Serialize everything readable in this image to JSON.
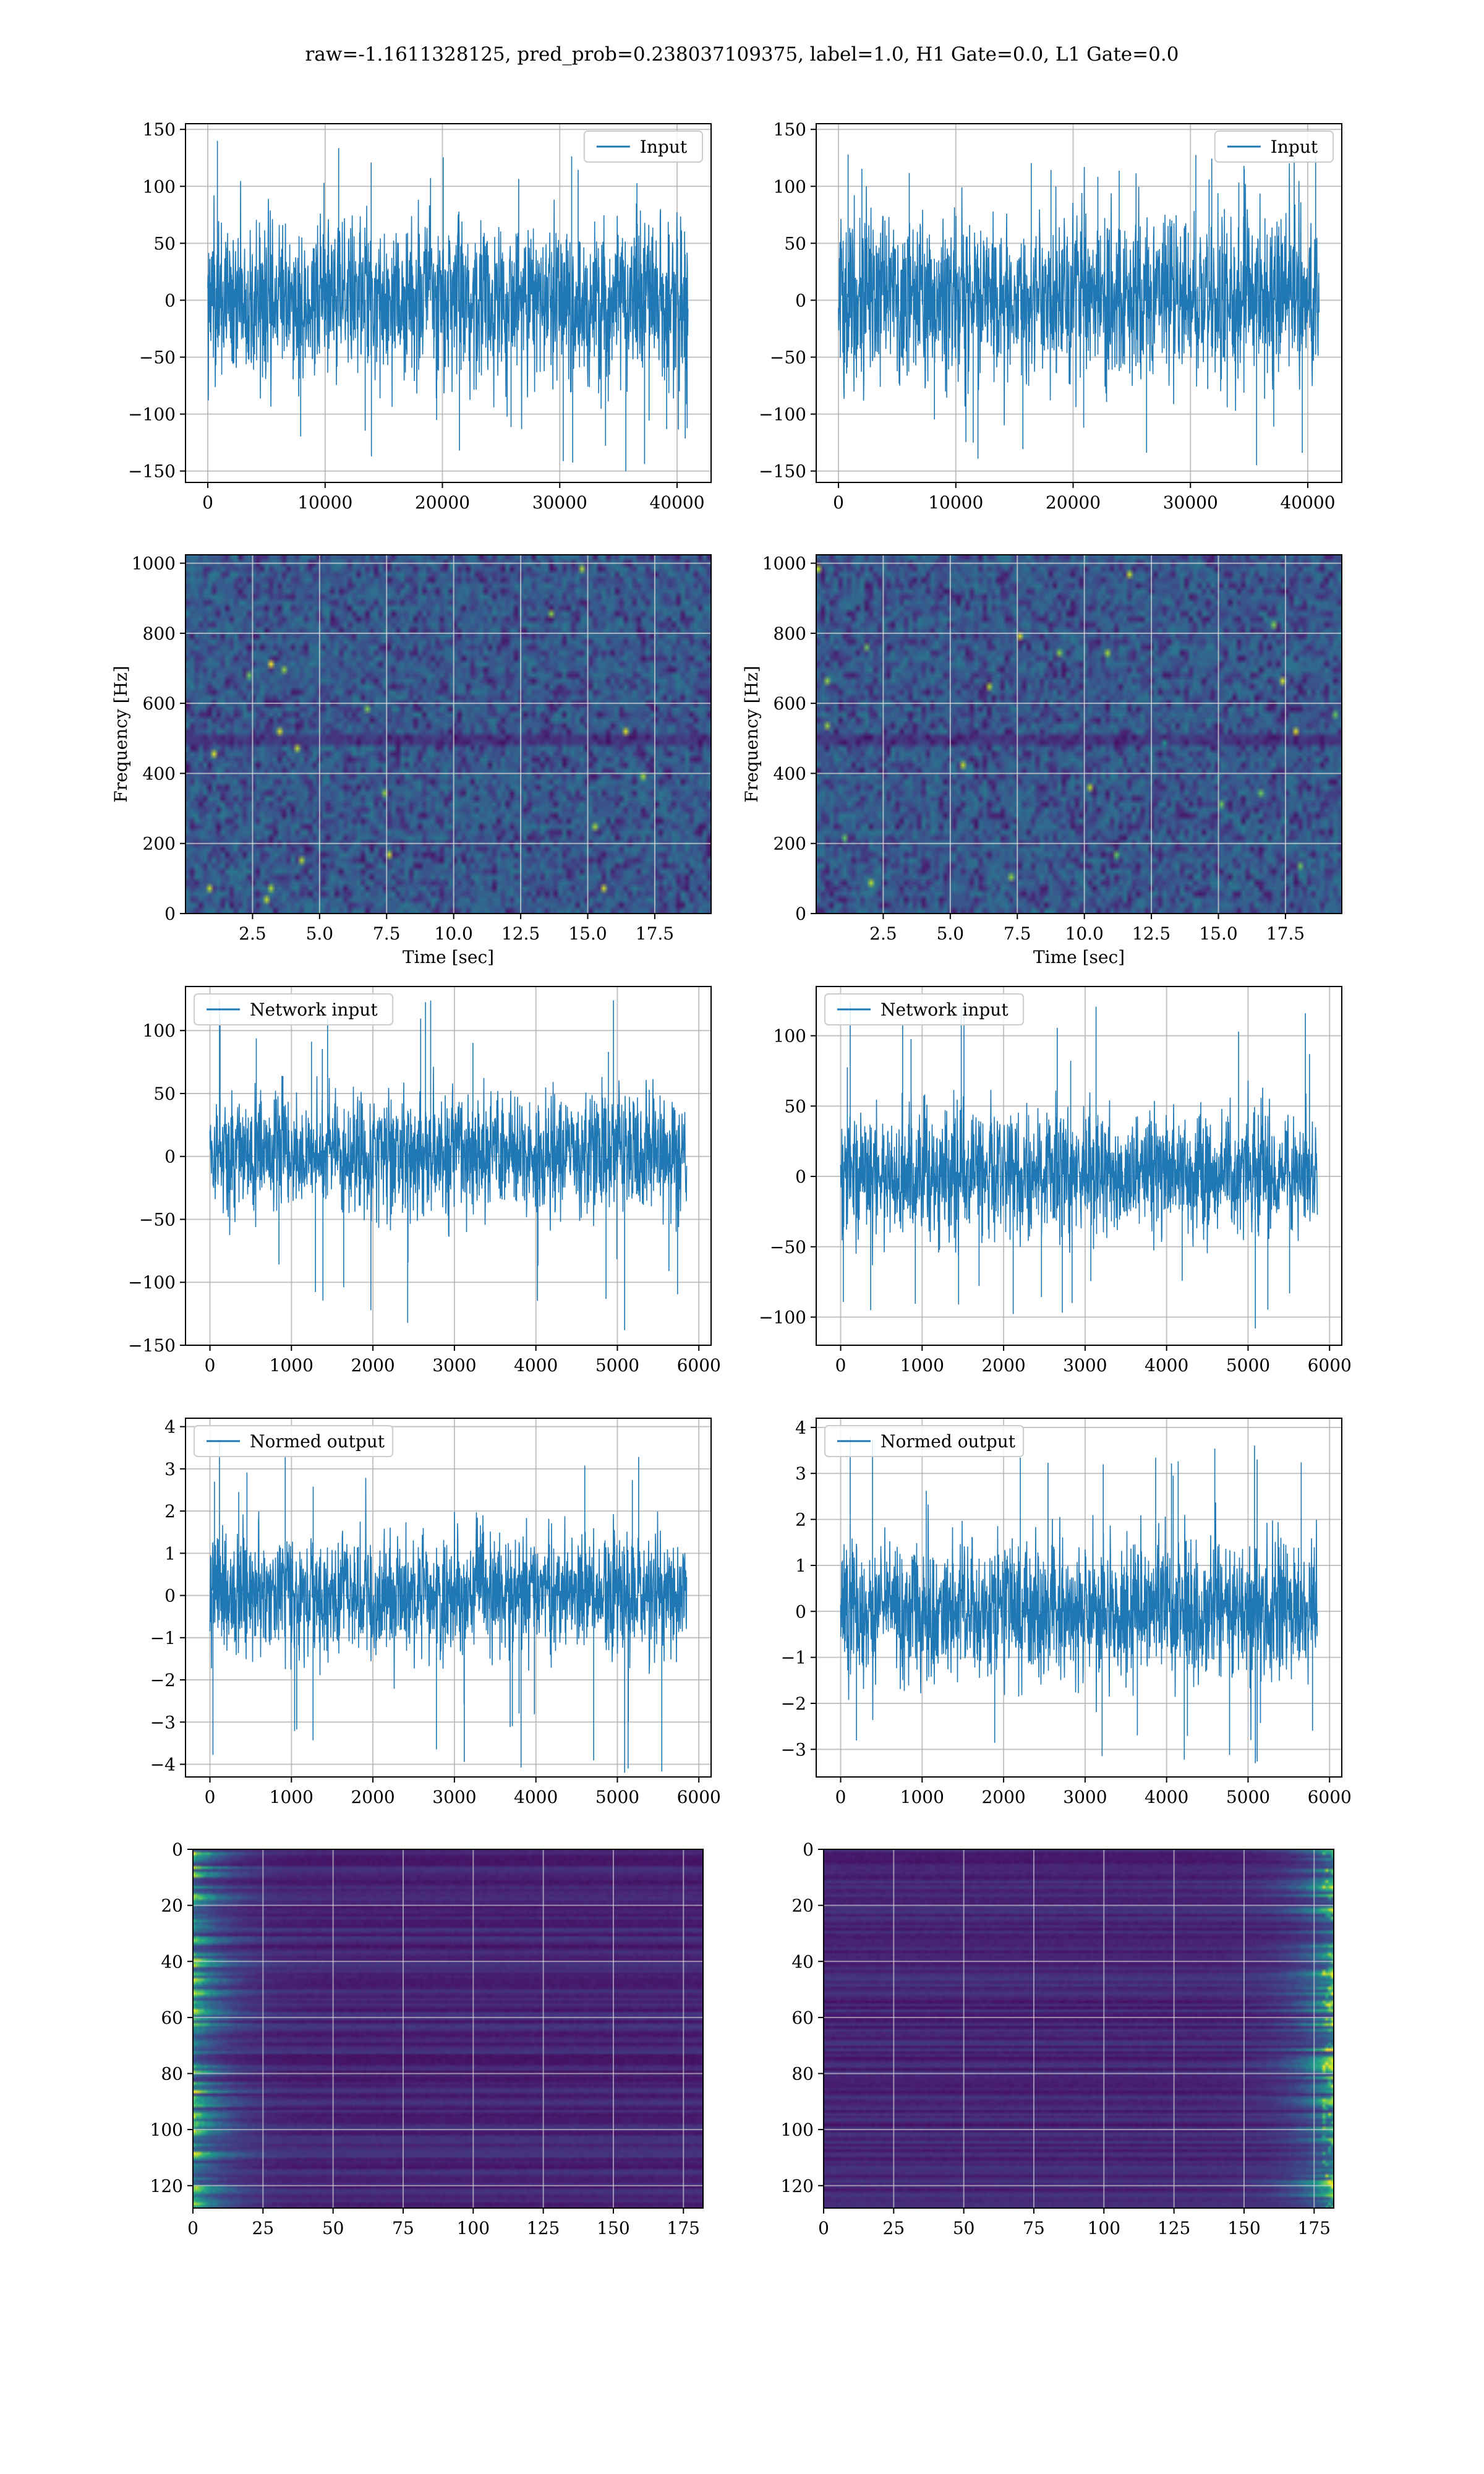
{
  "figure": {
    "title": "raw=-1.1611328125, pred_prob=0.238037109375, label=1.0, H1 Gate=0.0, L1 Gate=0.0"
  },
  "colors": {
    "line": "#1f77b4",
    "grid": "#b0b0b0",
    "viridis_dark": "#440154",
    "viridis_mid": "#21918c",
    "viridis_bright": "#fde725"
  },
  "chart_data": [
    {
      "id": "h1-input",
      "type": "line",
      "xlim": [
        -1900,
        42900
      ],
      "ylim": [
        -160,
        155
      ],
      "xticks": [
        0,
        10000,
        20000,
        30000,
        40000
      ],
      "yticks": [
        -150,
        -100,
        -50,
        0,
        50,
        100,
        150
      ],
      "xtick_labels": [
        "0",
        "10000",
        "20000",
        "30000",
        "40000"
      ],
      "ytick_labels": [
        "−150",
        "−100",
        "−50",
        "0",
        "50",
        "100",
        "150"
      ],
      "xlabel": "",
      "ylabel": "",
      "grid": true,
      "legend": "top-right",
      "series": [
        {
          "name": "Input",
          "x_range": [
            0,
            40960
          ],
          "envelope": [
            -90,
            90
          ],
          "peaks": [
            -150,
            140
          ]
        }
      ]
    },
    {
      "id": "l1-input",
      "type": "line",
      "xlim": [
        -1900,
        42900
      ],
      "ylim": [
        -160,
        155
      ],
      "xticks": [
        0,
        10000,
        20000,
        30000,
        40000
      ],
      "yticks": [
        -150,
        -100,
        -50,
        0,
        50,
        100,
        150
      ],
      "xtick_labels": [
        "0",
        "10000",
        "20000",
        "30000",
        "40000"
      ],
      "ytick_labels": [
        "−150",
        "−100",
        "−50",
        "0",
        "50",
        "100",
        "150"
      ],
      "xlabel": "",
      "ylabel": "",
      "grid": true,
      "legend": "top-right",
      "series": [
        {
          "name": "Input",
          "x_range": [
            0,
            40960
          ],
          "envelope": [
            -90,
            95
          ],
          "peaks": [
            -145,
            128
          ]
        }
      ]
    },
    {
      "id": "h1-spectrogram",
      "type": "heatmap",
      "xlim": [
        0,
        19.6
      ],
      "ylim": [
        0,
        1024
      ],
      "xticks": [
        2.5,
        5,
        7.5,
        10,
        12.5,
        15,
        17.5
      ],
      "yticks": [
        0,
        200,
        400,
        600,
        800,
        1000
      ],
      "xtick_labels": [
        "2.5",
        "5.0",
        "7.5",
        "10.0",
        "12.5",
        "15.0",
        "17.5"
      ],
      "ytick_labels": [
        "0",
        "200",
        "400",
        "600",
        "800",
        "1000"
      ],
      "xlabel": "Time [sec]",
      "ylabel": "Frequency [Hz]",
      "grid": true,
      "colormap": "viridis"
    },
    {
      "id": "l1-spectrogram",
      "type": "heatmap",
      "xlim": [
        0,
        19.6
      ],
      "ylim": [
        0,
        1024
      ],
      "xticks": [
        2.5,
        5,
        7.5,
        10,
        12.5,
        15,
        17.5
      ],
      "yticks": [
        0,
        200,
        400,
        600,
        800,
        1000
      ],
      "xtick_labels": [
        "2.5",
        "5.0",
        "7.5",
        "10.0",
        "12.5",
        "15.0",
        "17.5"
      ],
      "ytick_labels": [
        "0",
        "200",
        "400",
        "600",
        "800",
        "1000"
      ],
      "xlabel": "Time [sec]",
      "ylabel": "Frequency [Hz]",
      "grid": true,
      "colormap": "viridis"
    },
    {
      "id": "h1-network-input",
      "type": "line",
      "xlim": [
        -300,
        6150
      ],
      "ylim": [
        -150,
        135
      ],
      "xticks": [
        0,
        1000,
        2000,
        3000,
        4000,
        5000,
        6000
      ],
      "yticks": [
        -150,
        -100,
        -50,
        0,
        50,
        100
      ],
      "xtick_labels": [
        "0",
        "1000",
        "2000",
        "3000",
        "4000",
        "5000",
        "6000"
      ],
      "ytick_labels": [
        "−150",
        "−100",
        "−50",
        "0",
        "50",
        "100"
      ],
      "xlabel": "",
      "ylabel": "",
      "grid": true,
      "legend": "top-left",
      "series": [
        {
          "name": "Network input",
          "x_range": [
            0,
            5850
          ],
          "envelope": [
            -60,
            65
          ],
          "peaks": [
            -138,
            124
          ]
        }
      ]
    },
    {
      "id": "l1-network-input",
      "type": "line",
      "xlim": [
        -300,
        6150
      ],
      "ylim": [
        -120,
        135
      ],
      "xticks": [
        0,
        1000,
        2000,
        3000,
        4000,
        5000,
        6000
      ],
      "yticks": [
        -100,
        -50,
        0,
        50,
        100
      ],
      "xtick_labels": [
        "0",
        "1000",
        "2000",
        "3000",
        "4000",
        "5000",
        "6000"
      ],
      "ytick_labels": [
        "−100",
        "−50",
        "0",
        "50",
        "100"
      ],
      "xlabel": "",
      "ylabel": "",
      "grid": true,
      "legend": "top-left",
      "series": [
        {
          "name": "Network input",
          "x_range": [
            0,
            5850
          ],
          "envelope": [
            -55,
            60
          ],
          "peaks": [
            -108,
            124
          ]
        }
      ]
    },
    {
      "id": "h1-normed-output",
      "type": "line",
      "xlim": [
        -300,
        6150
      ],
      "ylim": [
        -4.3,
        4.2
      ],
      "xticks": [
        0,
        1000,
        2000,
        3000,
        4000,
        5000,
        6000
      ],
      "yticks": [
        -4,
        -3,
        -2,
        -1,
        0,
        1,
        2,
        3,
        4
      ],
      "xtick_labels": [
        "0",
        "1000",
        "2000",
        "3000",
        "4000",
        "5000",
        "6000"
      ],
      "ytick_labels": [
        "−4",
        "−3",
        "−2",
        "−1",
        "0",
        "1",
        "2",
        "3",
        "4"
      ],
      "xlabel": "",
      "ylabel": "",
      "grid": true,
      "legend": "top-left",
      "series": [
        {
          "name": "Normed output",
          "x_range": [
            0,
            5850
          ],
          "envelope": [
            -1.8,
            1.9
          ],
          "peaks": [
            -4.2,
            3.7
          ]
        }
      ]
    },
    {
      "id": "l1-normed-output",
      "type": "line",
      "xlim": [
        -300,
        6150
      ],
      "ylim": [
        -3.6,
        4.2
      ],
      "xticks": [
        0,
        1000,
        2000,
        3000,
        4000,
        5000,
        6000
      ],
      "yticks": [
        -3,
        -2,
        -1,
        0,
        1,
        2,
        3,
        4
      ],
      "xtick_labels": [
        "0",
        "1000",
        "2000",
        "3000",
        "4000",
        "5000",
        "6000"
      ],
      "ytick_labels": [
        "−3",
        "−2",
        "−1",
        "0",
        "1",
        "2",
        "3",
        "4"
      ],
      "xlabel": "",
      "ylabel": "",
      "grid": true,
      "legend": "top-left",
      "series": [
        {
          "name": "Normed output",
          "x_range": [
            0,
            5850
          ],
          "envelope": [
            -1.9,
            2.0
          ],
          "peaks": [
            -3.3,
            3.8
          ]
        }
      ]
    },
    {
      "id": "h1-feature-map",
      "type": "heatmap",
      "xlim": [
        0,
        182
      ],
      "ylim": [
        128,
        0
      ],
      "xticks": [
        0,
        25,
        50,
        75,
        100,
        125,
        150,
        175
      ],
      "yticks": [
        0,
        20,
        40,
        60,
        80,
        100,
        120
      ],
      "xtick_labels": [
        "0",
        "25",
        "50",
        "75",
        "100",
        "125",
        "150",
        "175"
      ],
      "ytick_labels": [
        "0",
        "20",
        "40",
        "60",
        "80",
        "100",
        "120"
      ],
      "xlabel": "",
      "ylabel": "",
      "grid": true,
      "colormap": "viridis",
      "hot_region": "left"
    },
    {
      "id": "l1-feature-map",
      "type": "heatmap",
      "xlim": [
        0,
        182
      ],
      "ylim": [
        128,
        0
      ],
      "xticks": [
        0,
        25,
        50,
        75,
        100,
        125,
        150,
        175
      ],
      "yticks": [
        0,
        20,
        40,
        60,
        80,
        100,
        120
      ],
      "xtick_labels": [
        "0",
        "25",
        "50",
        "75",
        "100",
        "125",
        "150",
        "175"
      ],
      "ytick_labels": [
        "0",
        "20",
        "40",
        "60",
        "80",
        "100",
        "120"
      ],
      "xlabel": "",
      "ylabel": "",
      "grid": true,
      "colormap": "viridis",
      "hot_region": "right"
    }
  ]
}
